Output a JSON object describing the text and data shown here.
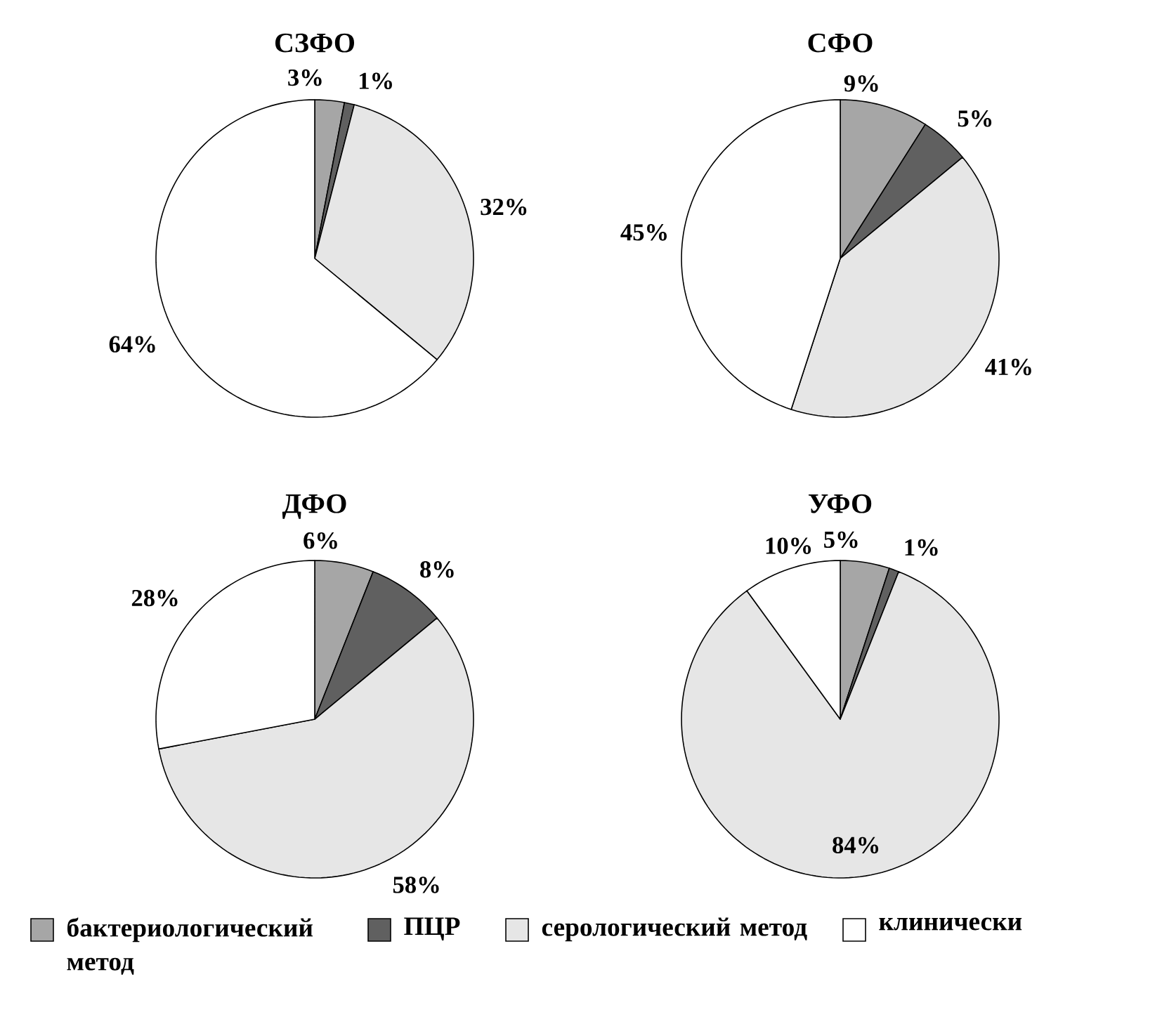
{
  "chart_data": [
    {
      "type": "pie",
      "title": "СЗФО",
      "categories": [
        "бактериологический метод",
        "ПЦР",
        "серологический метод",
        "клинически"
      ],
      "values": [
        3,
        1,
        32,
        64
      ],
      "value_labels": [
        "3%",
        "1%",
        "32%",
        "64%"
      ],
      "colors": [
        "#a6a6a6",
        "#606060",
        "#e6e6e6",
        "#ffffff"
      ],
      "legend": "bottom"
    },
    {
      "type": "pie",
      "title": "СФО",
      "values": [
        9,
        5,
        41,
        45
      ],
      "value_labels": [
        "9%",
        "5%",
        "41%",
        "45%"
      ],
      "colors": [
        "#a6a6a6",
        "#606060",
        "#e6e6e6",
        "#ffffff"
      ]
    },
    {
      "type": "pie",
      "title": "ДФО",
      "values": [
        6,
        8,
        58,
        28
      ],
      "value_labels": [
        "6%",
        "8%",
        "58%",
        "28%"
      ],
      "colors": [
        "#a6a6a6",
        "#606060",
        "#e6e6e6",
        "#ffffff"
      ]
    },
    {
      "type": "pie",
      "title": "УФО",
      "values": [
        5,
        1,
        84,
        10
      ],
      "value_labels": [
        "5%",
        "1%",
        "84%",
        "10%"
      ],
      "colors": [
        "#a6a6a6",
        "#606060",
        "#e6e6e6",
        "#ffffff"
      ]
    }
  ]
}
